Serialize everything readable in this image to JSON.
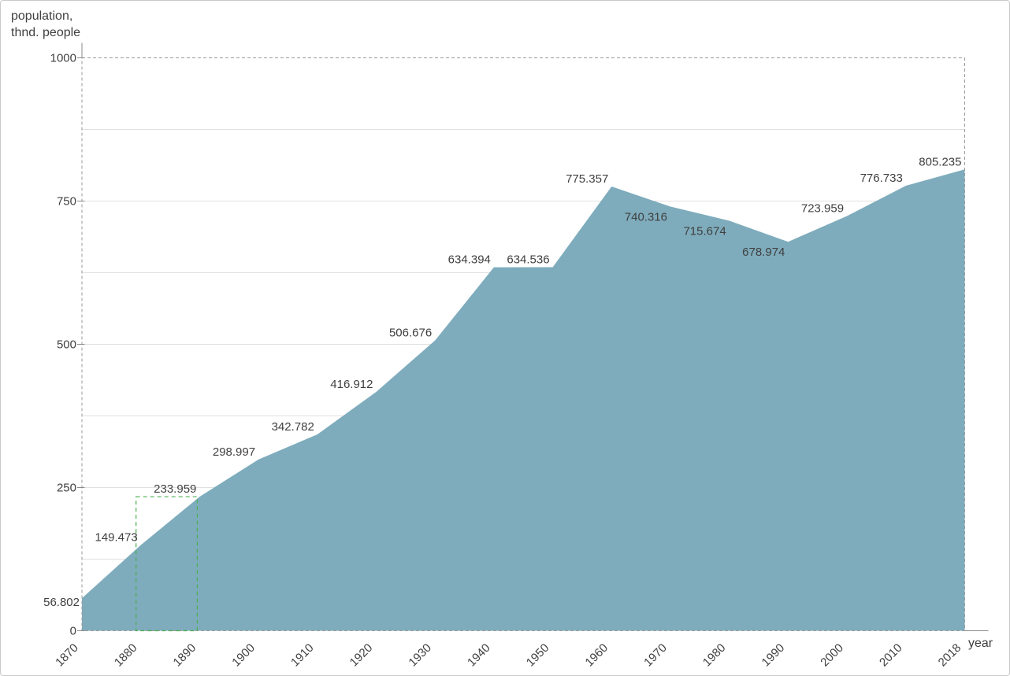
{
  "chart": {
    "y_axis_title": "population,\nthnd. people",
    "x_axis_title": "year"
  },
  "chart_data": {
    "type": "area",
    "title": "",
    "xlabel": "year",
    "ylabel": "population, thnd. people",
    "categories": [
      "1870",
      "1880",
      "1890",
      "1900",
      "1910",
      "1920",
      "1930",
      "1940",
      "1950",
      "1960",
      "1970",
      "1980",
      "1990",
      "2000",
      "2010",
      "2018"
    ],
    "values": [
      56.802,
      149.473,
      233.959,
      298.997,
      342.782,
      416.912,
      506.676,
      634.394,
      634.536,
      775.357,
      740.316,
      715.674,
      678.974,
      723.959,
      776.733,
      805.235
    ],
    "value_labels": [
      "56.802",
      "149.473",
      "233.959",
      "298.997",
      "342.782",
      "416.912",
      "506.676",
      "634.394",
      "634.536",
      "775.357",
      "740.316",
      "715.674",
      "678.974",
      "723.959",
      "776.733",
      "805.235"
    ],
    "ylim": [
      0,
      1000
    ],
    "ytick_values": [
      0,
      250,
      500,
      750,
      1000
    ],
    "ytick_labels": [
      "0",
      "250",
      "500",
      "750",
      "1000"
    ],
    "gridline_values": [
      125,
      250,
      375,
      500,
      625,
      750,
      875
    ],
    "grid": "on",
    "legend": "none",
    "colors": {
      "area_fill": "#7EACBC",
      "grid_line": "#e0e0e0",
      "plot_border": "#999999",
      "axis_line": "#8a8a8a",
      "text": "#3f3f3f",
      "inside_label_text": "#59534c",
      "selection": "#4caf50"
    },
    "label_placement": {
      "left_indices": [
        0
      ],
      "inside_indices": [
        10,
        11,
        12
      ]
    },
    "selection_rect": {
      "x_from": "1880",
      "x_to": "1890",
      "y_from": 0,
      "y_to": 233.959
    }
  }
}
